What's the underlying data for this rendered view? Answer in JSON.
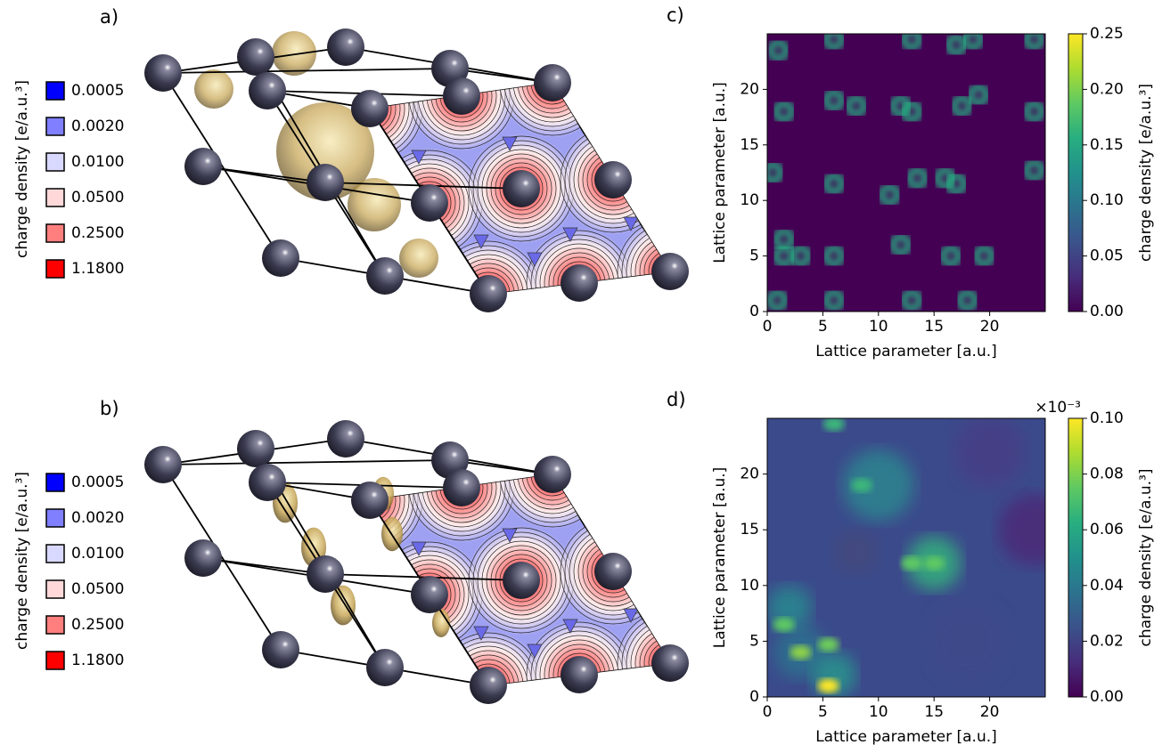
{
  "panels": [
    {
      "label": "a)",
      "legend_title": "charge density [e/a.u.³]",
      "legend": [
        {
          "value": 0.0005,
          "color": "#0000ff"
        },
        {
          "value": 0.002,
          "label": "0.0020",
          "color": "#7f7fff"
        },
        {
          "value": 0.01,
          "label": "0.0100",
          "color": "#d9d9ff"
        },
        {
          "value": 0.05,
          "label": "0.0500",
          "color": "#ffd9d9"
        },
        {
          "value": 0.25,
          "label": "0.2500",
          "color": "#ff7f7f"
        },
        {
          "value": 1.18,
          "label": "1.1800",
          "color": "#ff0000"
        }
      ]
    },
    {
      "label": "b)",
      "legend_title": "charge density [e/a.u.³]",
      "legend": [
        {
          "value": 0.0005,
          "color": "#0000ff"
        },
        {
          "value": 0.002,
          "label": "0.0020",
          "color": "#7f7fff"
        },
        {
          "value": 0.01,
          "label": "0.0100",
          "color": "#d9d9ff"
        },
        {
          "value": 0.05,
          "label": "0.0500",
          "color": "#ffd9d9"
        },
        {
          "value": 0.25,
          "label": "0.2500",
          "color": "#ff7f7f"
        },
        {
          "value": 1.18,
          "label": "1.1800",
          "color": "#ff0000"
        }
      ]
    }
  ],
  "chart_data": [
    {
      "type": "heatmap",
      "panel_label": "c)",
      "xlabel": "Lattice parameter [a.u.]",
      "ylabel": "Lattice parameter [a.u.]",
      "xlim": [
        0,
        25
      ],
      "ylim": [
        0,
        25
      ],
      "xticks": [
        0,
        5,
        10,
        15,
        20
      ],
      "yticks": [
        0,
        5,
        10,
        15,
        20
      ],
      "colorbar": {
        "label": "charge density [e/a.u.³]",
        "lim": [
          0,
          0.25
        ],
        "ticks": [
          {
            "value": 0,
            "label": "0.00"
          },
          0.05,
          {
            "value": 0.1,
            "label": "0.10"
          },
          0.15,
          {
            "value": 0.2,
            "label": "0.20"
          },
          0.25
        ]
      }
    },
    {
      "type": "heatmap",
      "panel_label": "d)",
      "xlabel": "Lattice parameter [a.u.]",
      "ylabel": "Lattice parameter [a.u.]",
      "xlim": [
        0,
        25
      ],
      "ylim": [
        0,
        25
      ],
      "xticks": [
        0,
        5,
        10,
        15,
        20
      ],
      "yticks": [
        0,
        5,
        10,
        15,
        20
      ],
      "colorbar": {
        "label": "charge density [e/a.u.³]",
        "lim": [
          0,
          0.1
        ],
        "offset_text": "×10⁻³",
        "ticks": [
          {
            "value": 0,
            "label": "0.00"
          },
          0.02,
          0.04,
          0.06,
          0.08,
          {
            "value": 0.1,
            "label": "0.10"
          }
        ]
      }
    }
  ]
}
